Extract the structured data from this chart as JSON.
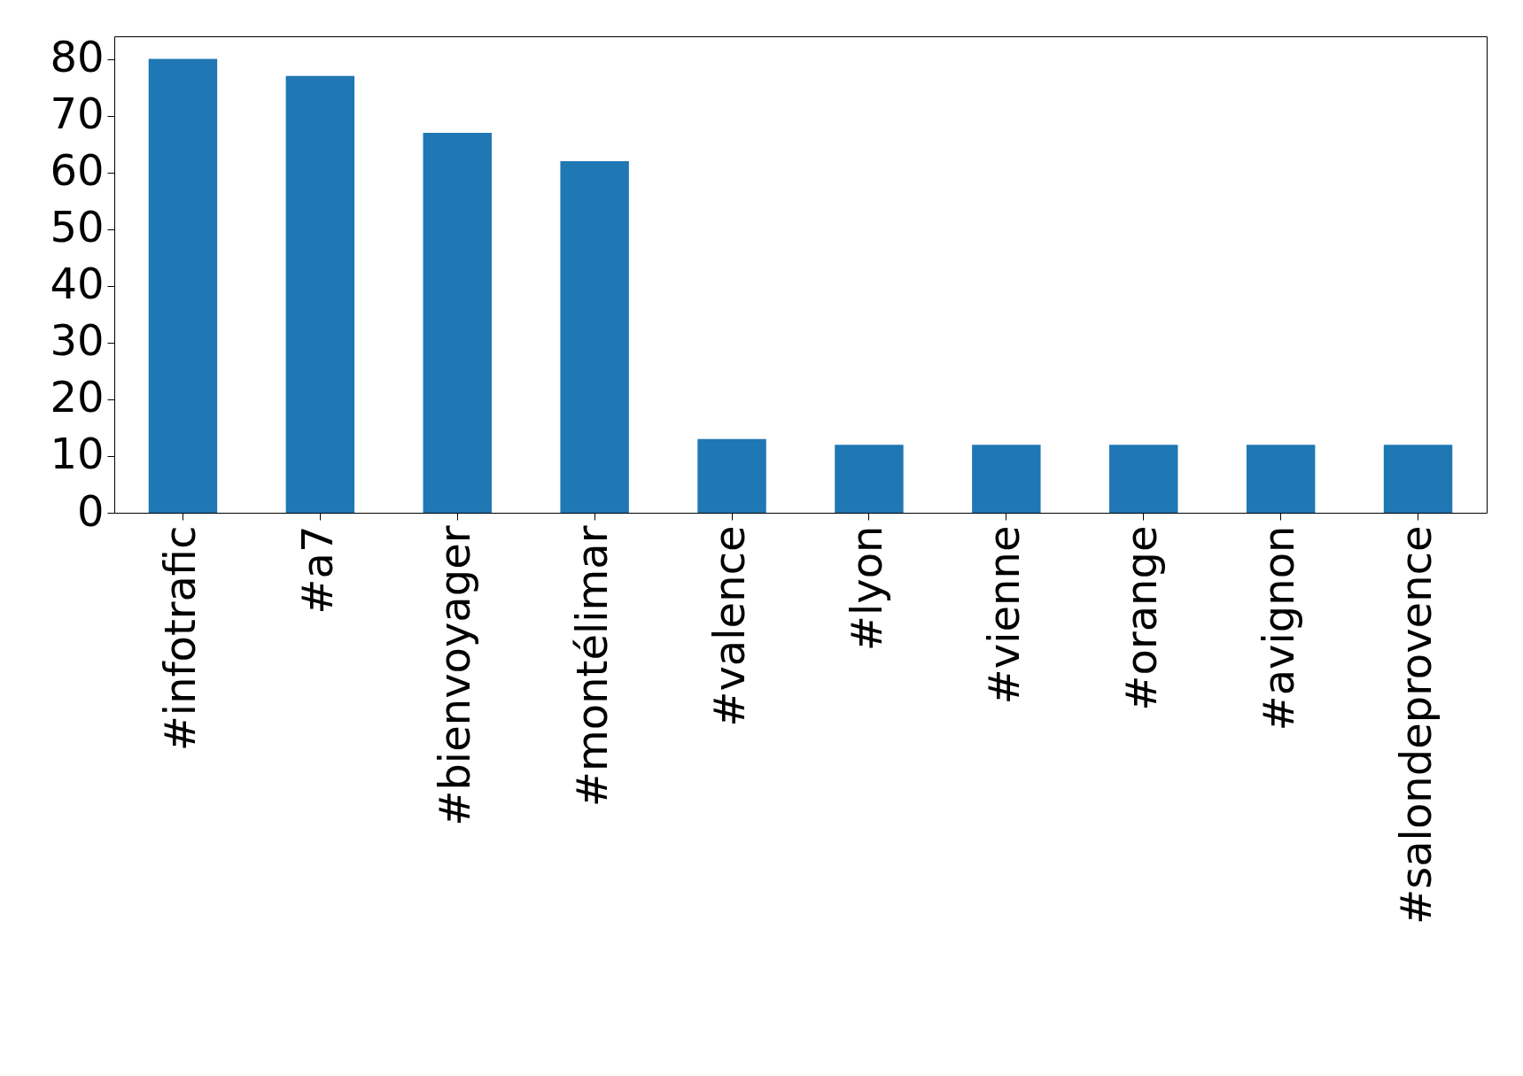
{
  "chart_data": {
    "type": "bar",
    "categories": [
      "#infotrafic",
      "#a7",
      "#bienvoyager",
      "#montélimar",
      "#valence",
      "#lyon",
      "#vienne",
      "#orange",
      "#avignon",
      "#salondeprovence"
    ],
    "values": [
      80,
      77,
      67,
      62,
      13,
      12,
      12,
      12,
      12,
      12
    ],
    "color": "#1f77b4",
    "ylim": [
      0,
      84
    ],
    "yticks": [
      0,
      10,
      20,
      30,
      40,
      50,
      60,
      70,
      80
    ],
    "grid": false
  }
}
